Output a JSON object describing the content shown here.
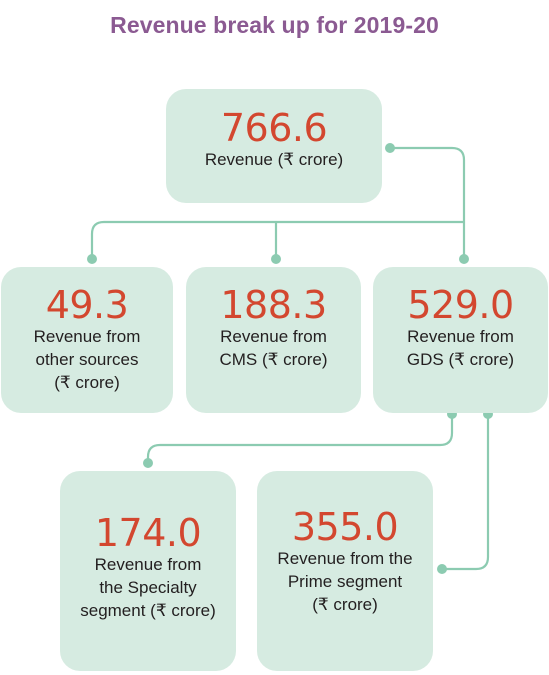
{
  "title": "Revenue break up for 2019-20",
  "colors": {
    "title": "#8b5a92",
    "box_fill": "#d6ebe1",
    "value_text": "#d3472f",
    "connector": "#8ccbb1"
  },
  "nodes": {
    "total": {
      "value": "766.6",
      "label": "Revenue (₹ crore)"
    },
    "other": {
      "value": "49.3",
      "label": "Revenue from\nother sources\n(₹ crore)"
    },
    "cms": {
      "value": "188.3",
      "label": "Revenue from\nCMS (₹ crore)"
    },
    "gds": {
      "value": "529.0",
      "label": "Revenue from\nGDS (₹ crore)"
    },
    "specialty": {
      "value": "174.0",
      "label": "Revenue from\nthe Specialty\nsegment (₹ crore)"
    },
    "prime": {
      "value": "355.0",
      "label": "Revenue from the\nPrime segment\n(₹ crore)"
    }
  }
}
